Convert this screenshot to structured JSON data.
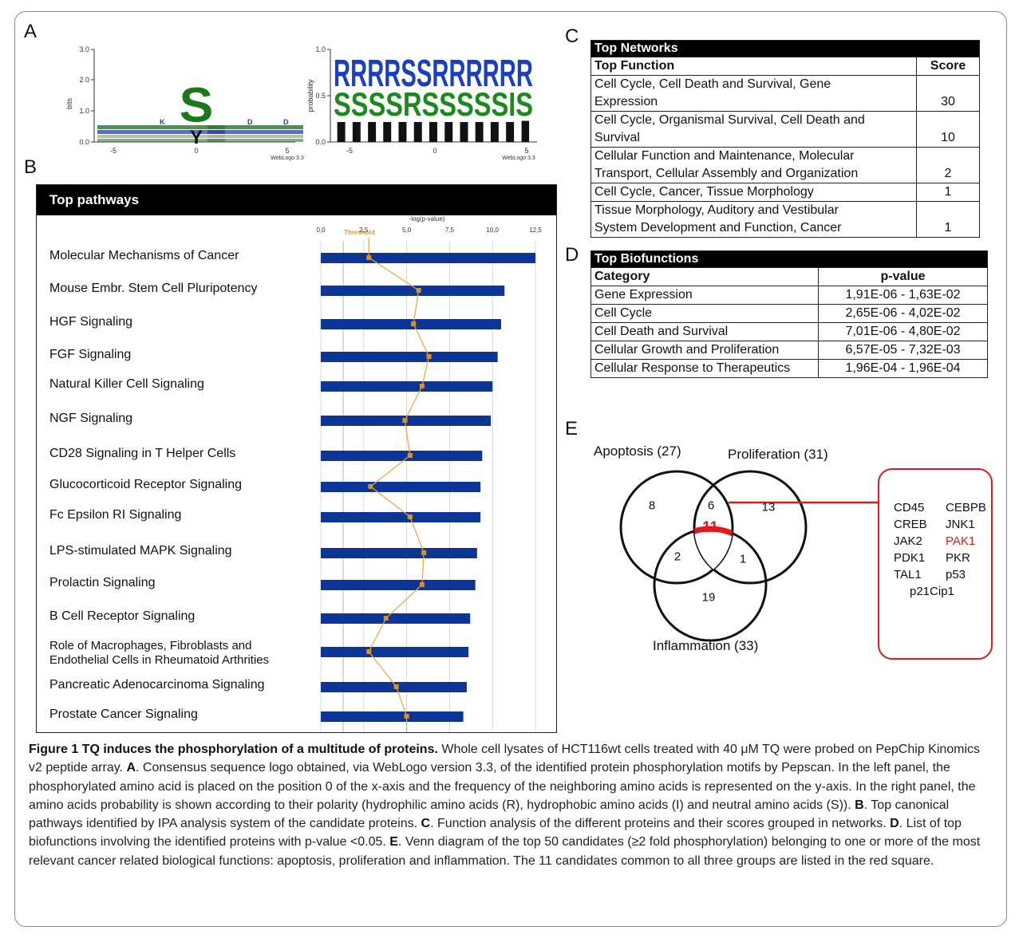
{
  "panels": {
    "a": "A",
    "b": "B",
    "c": "C",
    "d": "D",
    "e": "E"
  },
  "logo_left": {
    "ylabel": "bits",
    "yticks": [
      "3.0",
      "2.0",
      "1.0",
      "0.0"
    ],
    "xticks": [
      "-5",
      "0",
      "5"
    ],
    "credit": "WebLogo 3.3",
    "main_letter": "S",
    "sub_letter": "Y"
  },
  "logo_right": {
    "ylabel": "probability",
    "yticks": [
      "1.0",
      "0.5",
      "0.0"
    ],
    "xticks": [
      "-5",
      "0",
      "5"
    ],
    "credit": "WebLogo 3.3"
  },
  "pathways": {
    "title": "Top pathways",
    "axis_title": "-log(p-value)",
    "threshold_label": "Threshold",
    "colors": {
      "bar": "#0d3596",
      "ratio_line": "#f0a535",
      "ratio_marker": "#e0901a"
    }
  },
  "chart_data": {
    "type": "bar",
    "orientation": "horizontal",
    "title": "Top pathways",
    "xlabel": "-log(p-value)",
    "xlim": [
      0,
      12.5
    ],
    "xticks": [
      "0,0",
      "2,5",
      "5,0",
      "7,5",
      "10,0",
      "12,5"
    ],
    "threshold": 1.3,
    "categories": [
      "Molecular Mechanisms of Cancer",
      "Mouse Embr. Stem Cell Pluripotency",
      "HGF Signaling",
      "FGF Signaling",
      "Natural Killer Cell Signaling",
      "NGF Signaling",
      "CD28 Signaling in T Helper Cells",
      "Glucocorticoid Receptor Signaling",
      "Fc Epsilon RI Signaling",
      "LPS-stimulated MAPK Signaling",
      "Prolactin Signaling",
      "B Cell Receptor Signaling",
      "Role of Macrophages, Fibroblasts and Endothelial Cells in Rheumatoid Arthrities",
      "Pancreatic Adenocarcinoma Signaling",
      "Prostate Cancer Signaling"
    ],
    "series": [
      {
        "values": [
          12.5,
          10.7,
          10.5,
          10.3,
          10.0,
          9.9,
          9.4,
          9.3,
          9.3,
          9.1,
          9.0,
          8.7,
          8.6,
          8.5,
          8.3
        ]
      },
      {
        "values": [
          2.8,
          5.7,
          5.4,
          6.3,
          5.9,
          4.9,
          5.2,
          2.9,
          5.2,
          6.0,
          5.9,
          3.8,
          2.8,
          4.4,
          5.0
        ]
      }
    ]
  },
  "networks": {
    "title": "Top Networks",
    "col_function": "Top Function",
    "col_score": "Score",
    "rows": [
      {
        "line1": "Cell Cycle, Cell Death and Survival, Gene",
        "line2": "Expression",
        "score": "30"
      },
      {
        "line1": "Cell Cycle, Organismal Survival, Cell Death and",
        "line2": "Survival",
        "score": "10"
      },
      {
        "line1": "Cellular Function and Maintenance, Molecular",
        "line2": "Transport, Cellular Assembly and Organization",
        "score": "2"
      },
      {
        "line1": "Cell Cycle, Cancer, Tissue Morphology",
        "line2": "",
        "score": "1"
      },
      {
        "line1": "Tissue Morphology, Auditory and Vestibular",
        "line2": "System Development and Function, Cancer",
        "score": "1"
      }
    ]
  },
  "biofunctions": {
    "title": "Top Biofunctions",
    "col_category": "Category",
    "col_pvalue": "p-value",
    "rows": [
      {
        "category": "Gene Expression",
        "pvalue": "1,91E-06 - 1,63E-02"
      },
      {
        "category": "Cell Cycle",
        "pvalue": "2,65E-06 - 4,02E-02"
      },
      {
        "category": "Cell Death and Survival",
        "pvalue": "7,01E-06 - 4,80E-02"
      },
      {
        "category": "Cellular Growth and Proliferation",
        "pvalue": "6,57E-05 - 7,32E-03"
      },
      {
        "category": "Cellular Response to Therapeutics",
        "pvalue": "1,96E-04 - 1,96E-04"
      }
    ]
  },
  "venn": {
    "apoptosis_label": "Apoptosis (27)",
    "proliferation_label": "Proliferation (31)",
    "inflammation_label": "Inflammation (33)",
    "apoptosis_only": "8",
    "apop_prolif": "6",
    "prolif_only": "13",
    "center": "11",
    "apop_inflam": "2",
    "prolif_inflam": "1",
    "inflam_only": "19",
    "highlight_color": "#e0191c",
    "genes": [
      [
        "CD45",
        "CEBPB"
      ],
      [
        "CREB",
        "JNK1"
      ],
      [
        "JAK2",
        "PAK1"
      ],
      [
        "PDK1",
        "PKR"
      ],
      [
        "TAL1",
        "p53"
      ]
    ],
    "gene_last": "p21Cip1",
    "highlighted_gene": "PAK1"
  },
  "caption": {
    "label": "Figure 1 TQ induces the phosphorylation of a multitude of proteins.",
    "intro": " Whole cell lysates of HCT116wt cells treated with 40 μM TQ were probed on PepChip Kinomics v2 peptide array. ",
    "a_label": "A",
    "a_text": ". Consensus sequence logo obtained, via WebLogo version 3.3, of the identified protein phosphorylation motifs by Pepscan. In the left panel, the phosphorylated amino acid is placed on the position 0 of the x-axis and the frequency of the neighboring amino acids is represented on the y-axis. In the right panel, the amino acids probability is shown according to their polarity (hydrophilic amino acids (R), hydrophobic amino acids (I) and neutral amino acids (S)). ",
    "b_label": "B",
    "b_text": ". Top canonical pathways identified by IPA analysis system of the candidate proteins. ",
    "c_label": "C",
    "c_text": ". Function analysis of the different proteins and their scores grouped in networks. ",
    "d_label": "D",
    "d_text": ". List of top biofunctions involving the identified proteins with p-value <0.05. ",
    "e_label": "E",
    "e_text": ". Venn diagram of the top 50 candidates (≥2 fold phosphorylation) belonging to one or more of the most relevant cancer related biological functions: apoptosis, proliferation and inflammation. The 11 candidates common to all three groups are listed in the red square."
  }
}
